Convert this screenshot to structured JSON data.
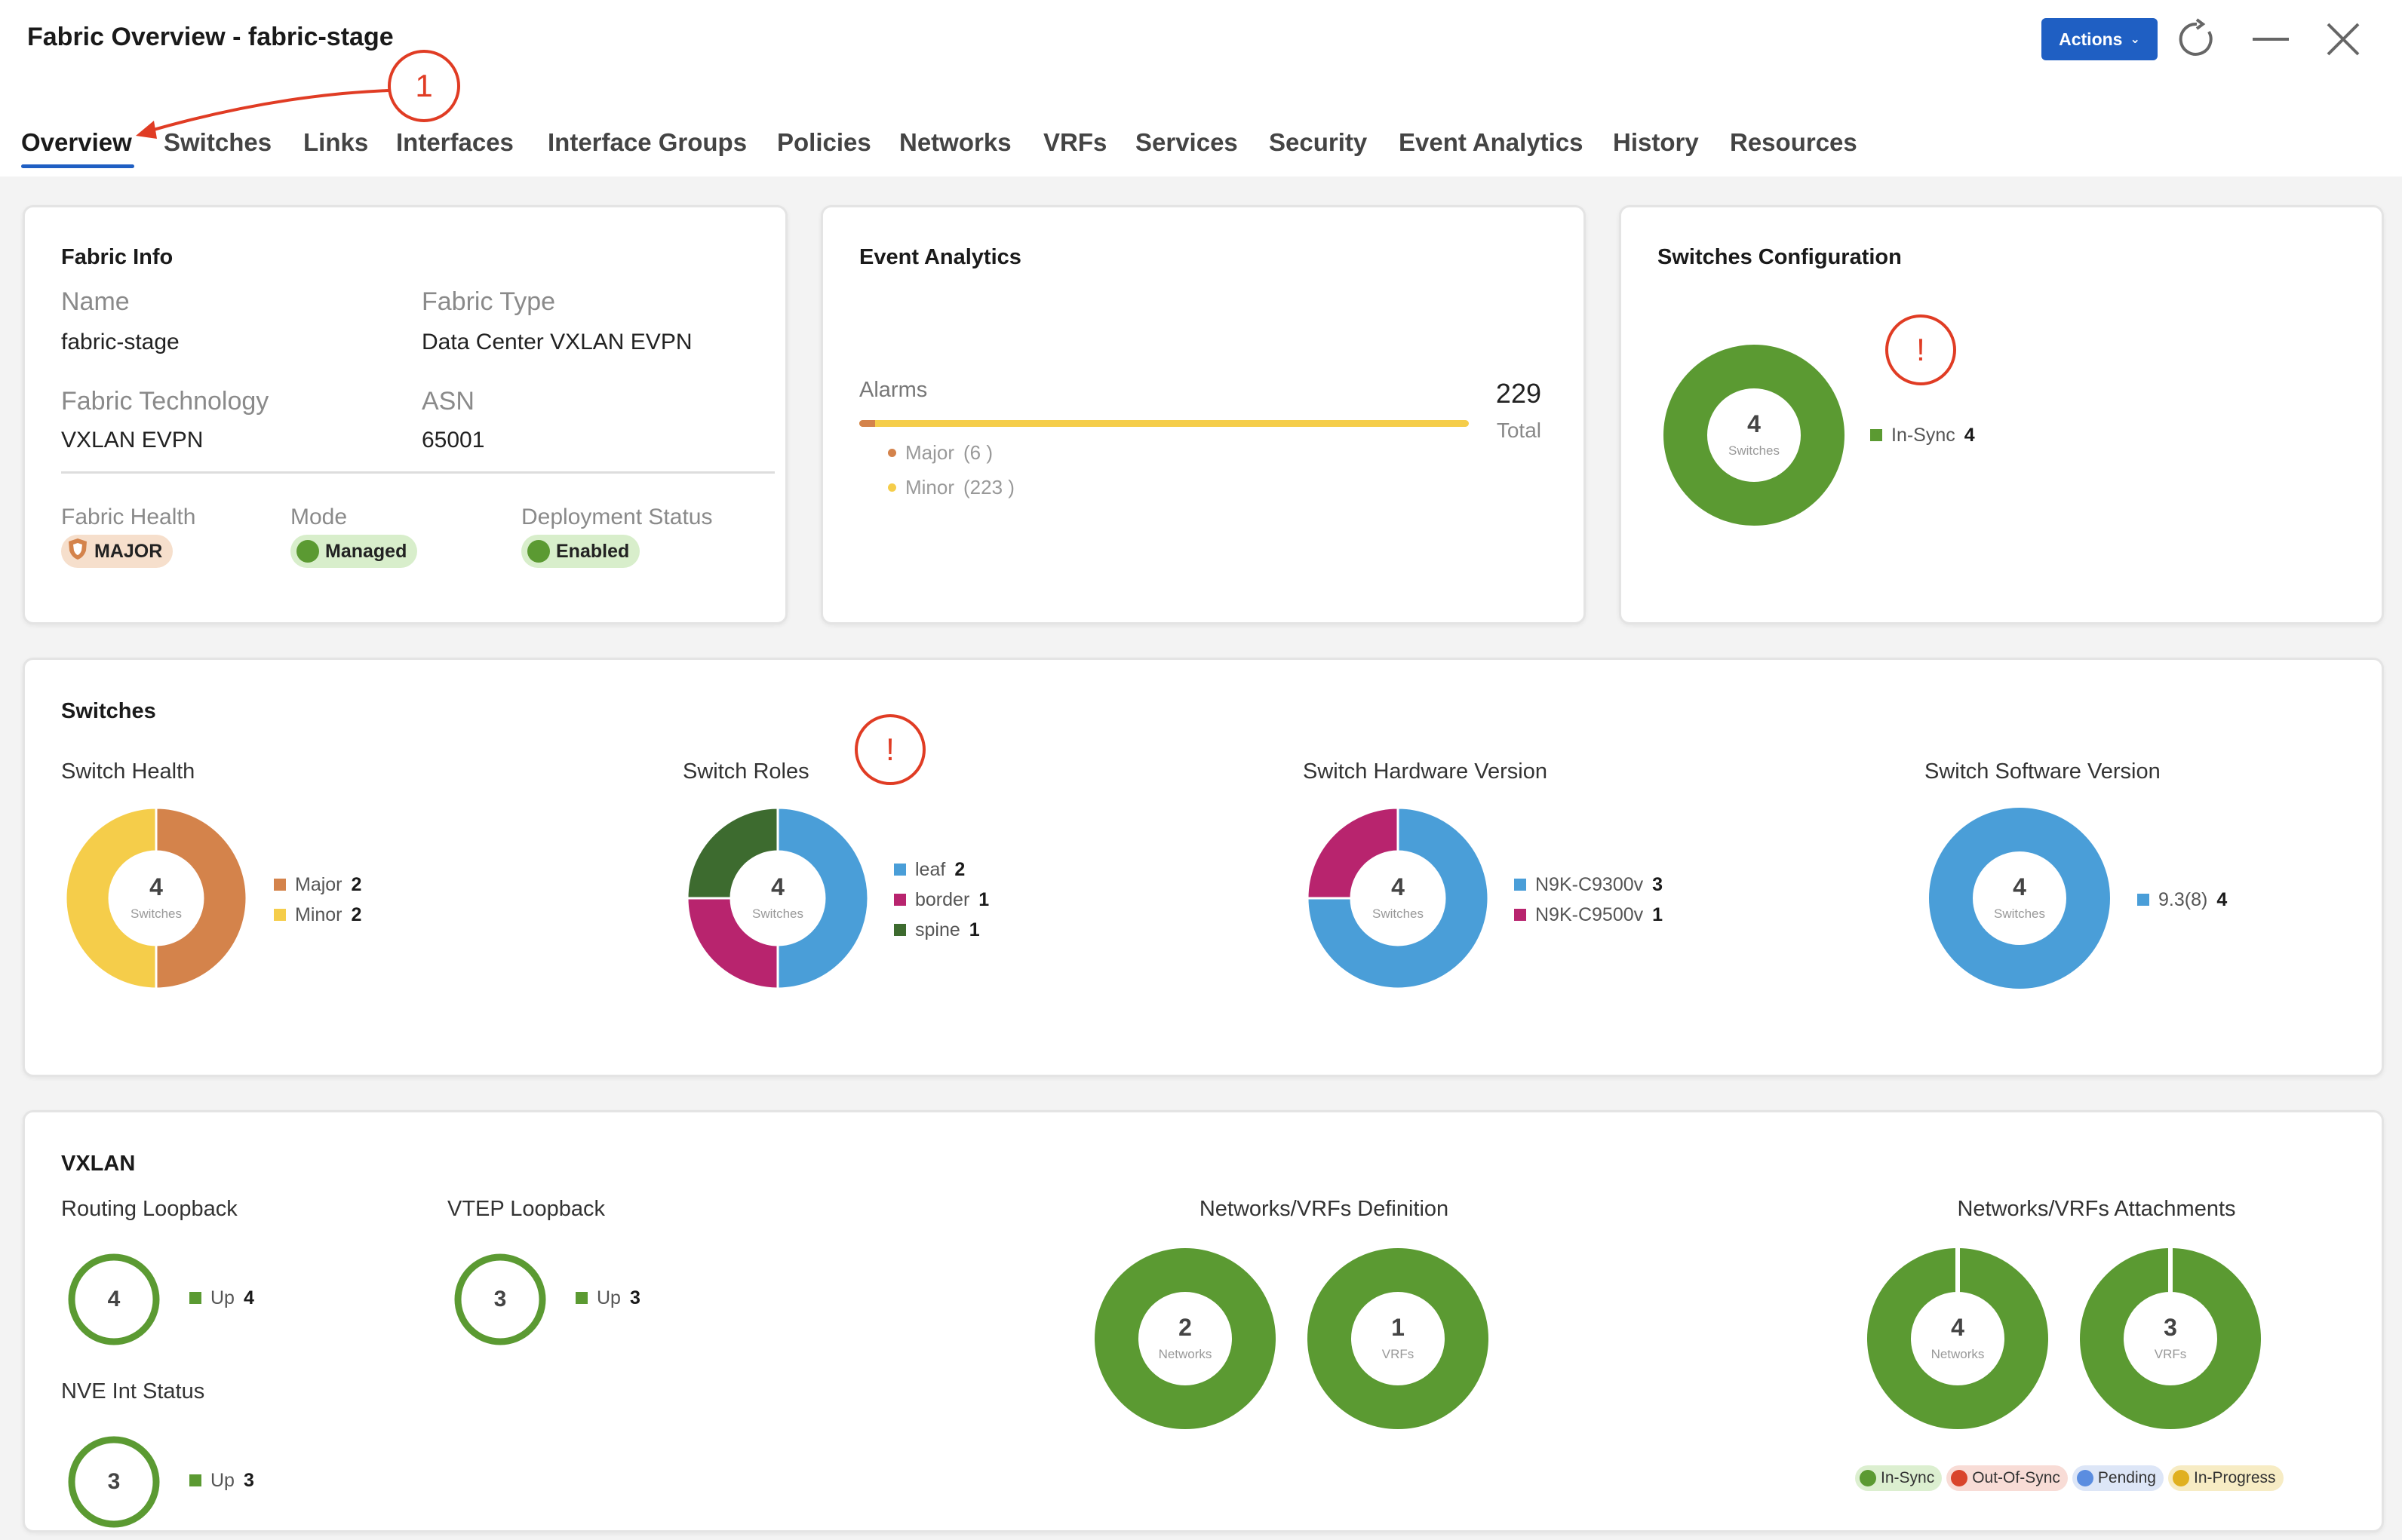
{
  "window": {
    "title": "Fabric Overview - fabric-stage",
    "actions_label": "Actions",
    "annotation_number": "1"
  },
  "tabs": [
    "Overview",
    "Switches",
    "Links",
    "Interfaces",
    "Interface Groups",
    "Policies",
    "Networks",
    "VRFs",
    "Services",
    "Security",
    "Event Analytics",
    "History",
    "Resources"
  ],
  "fabric_info": {
    "title": "Fabric Info",
    "name_label": "Name",
    "name": "fabric-stage",
    "type_label": "Fabric Type",
    "type": "Data Center VXLAN EVPN",
    "tech_label": "Fabric Technology",
    "tech": "VXLAN EVPN",
    "asn_label": "ASN",
    "asn": "65001",
    "health_label": "Fabric Health",
    "health": "MAJOR",
    "mode_label": "Mode",
    "mode": "Managed",
    "deploy_label": "Deployment Status",
    "deploy": "Enabled"
  },
  "event_analytics": {
    "title": "Event Analytics",
    "alarms_label": "Alarms",
    "total": "229",
    "total_label": "Total",
    "major_label": "Major",
    "major_count": "(6 )",
    "minor_label": "Minor",
    "minor_count": "(223 )",
    "major_value": 6,
    "minor_value": 223
  },
  "switches_config": {
    "title": "Switches Configuration",
    "num": "4",
    "unit": "Switches",
    "legend_label": "In-Sync",
    "legend_value": "4",
    "alert": "!"
  },
  "switches": {
    "title": "Switches",
    "health": {
      "title": "Switch Health",
      "num": "4",
      "unit": "Switches",
      "items": [
        {
          "label": "Major",
          "value": "2",
          "color": "#d4834b"
        },
        {
          "label": "Minor",
          "value": "2",
          "color": "#f5cd4a"
        }
      ]
    },
    "roles": {
      "title": "Switch Roles",
      "num": "4",
      "unit": "Switches",
      "alert": "!",
      "items": [
        {
          "label": "leaf",
          "value": "2",
          "color": "#4a9ed8"
        },
        {
          "label": "border",
          "value": "1",
          "color": "#b8246e"
        },
        {
          "label": "spine",
          "value": "1",
          "color": "#3d6b2f"
        }
      ]
    },
    "hardware": {
      "title": "Switch Hardware Version",
      "num": "4",
      "unit": "Switches",
      "items": [
        {
          "label": "N9K-C9300v",
          "value": "3",
          "color": "#4a9ed8"
        },
        {
          "label": "N9K-C9500v",
          "value": "1",
          "color": "#b8246e"
        }
      ]
    },
    "software": {
      "title": "Switch Software Version",
      "num": "4",
      "unit": "Switches",
      "items": [
        {
          "label": "9.3(8)",
          "value": "4",
          "color": "#4a9ed8"
        }
      ]
    }
  },
  "vxlan": {
    "title": "VXLAN",
    "routing": {
      "title": "Routing Loopback",
      "num": "4",
      "label": "Up",
      "value": "4"
    },
    "vtep": {
      "title": "VTEP Loopback",
      "num": "3",
      "label": "Up",
      "value": "3"
    },
    "nve": {
      "title": "NVE Int Status",
      "num": "3",
      "label": "Up",
      "value": "3"
    },
    "definition": {
      "title": "Networks/VRFs Definition",
      "networks_num": "2",
      "networks_unit": "Networks",
      "vrfs_num": "1",
      "vrfs_unit": "VRFs"
    },
    "attachments": {
      "title": "Networks/VRFs Attachments",
      "networks_num": "4",
      "networks_unit": "Networks",
      "vrfs_num": "3",
      "vrfs_unit": "VRFs"
    },
    "status_legend": [
      {
        "label": "In-Sync",
        "color": "#5b9a32",
        "bg": "#dcefd0"
      },
      {
        "label": "Out-Of-Sync",
        "color": "#d9452c",
        "bg": "#f8dcd6"
      },
      {
        "label": "Pending",
        "color": "#5b8de0",
        "bg": "#dde6f7"
      },
      {
        "label": "In-Progress",
        "color": "#e0b020",
        "bg": "#f7ecc4"
      }
    ]
  },
  "colors": {
    "accent": "#1f5fc3",
    "green": "#5b9a32",
    "alert": "#e03c24"
  }
}
